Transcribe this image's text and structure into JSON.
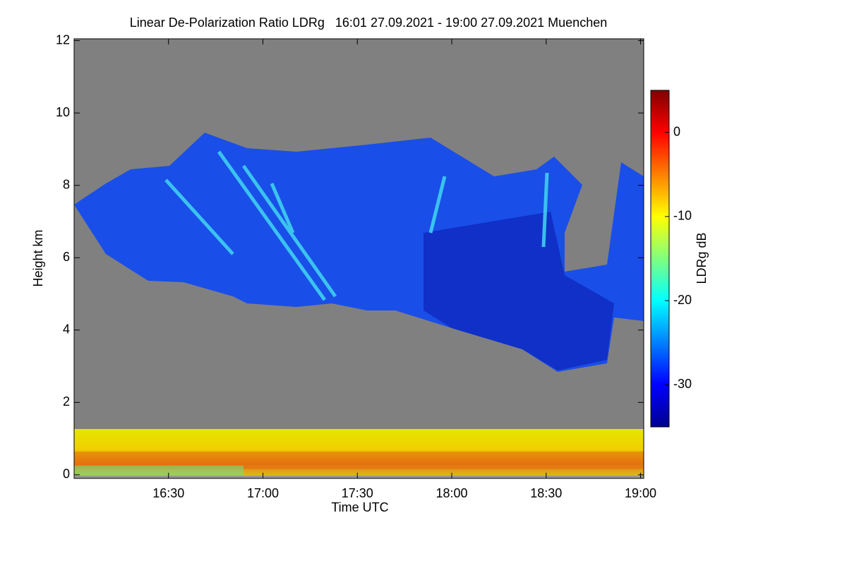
{
  "chart_data": {
    "type": "heatmap",
    "title": "Linear De-Polarization Ratio LDRg   16:01 27.09.2021 - 19:00 27.09.2021 Muenchen",
    "x_label": "Time UTC",
    "y_label": "Height km",
    "xlim": [
      960,
      1141
    ],
    "xticks": [
      {
        "value": 990,
        "label": "16:30"
      },
      {
        "value": 1020,
        "label": "17:00"
      },
      {
        "value": 1050,
        "label": "17:30"
      },
      {
        "value": 1080,
        "label": "18:00"
      },
      {
        "value": 1110,
        "label": "18:30"
      },
      {
        "value": 1140,
        "label": "19:00"
      }
    ],
    "ylim": [
      -0.1,
      12.05
    ],
    "yticks": [
      0,
      2,
      4,
      6,
      8,
      10,
      12
    ],
    "colorbar": {
      "label": "LDRg dB",
      "lim": [
        -35,
        5
      ],
      "ticks": [
        0,
        -10,
        -20,
        -30
      ],
      "colormap": "jet"
    },
    "background": "#808080"
  }
}
